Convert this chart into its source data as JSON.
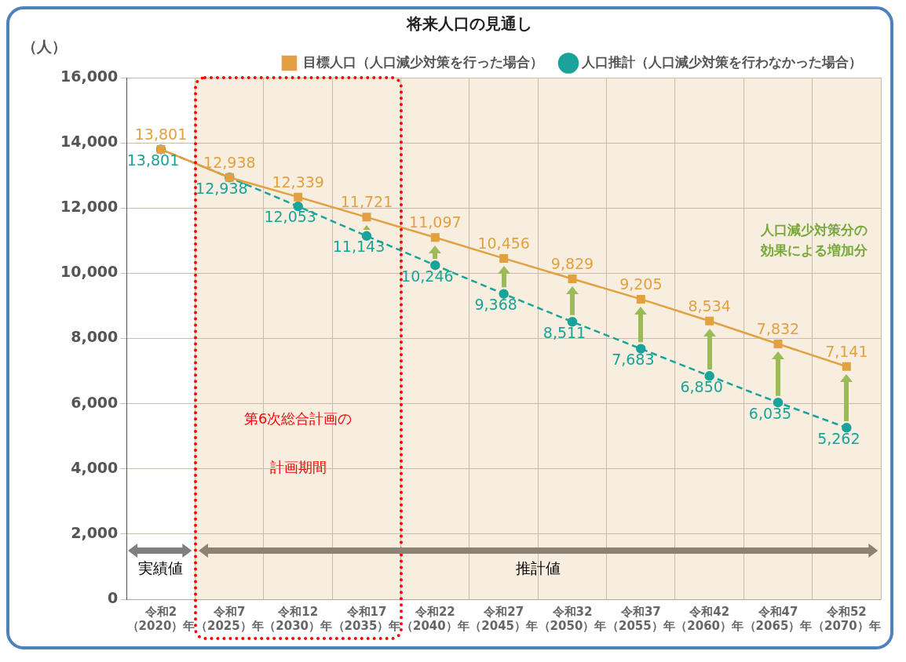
{
  "chart_data": {
    "type": "line",
    "title": "将来人口の見通し",
    "ylabel": "（人）",
    "categories": [
      "令和2（2020）年",
      "令和7（2025）年",
      "令和12（2030）年",
      "令和17（2035）年",
      "令和22（2040）年",
      "令和27（2045）年",
      "令和32（2050）年",
      "令和37（2055）年",
      "令和42（2060）年",
      "令和47（2065）年",
      "令和52（2070）年"
    ],
    "series": [
      {
        "name": "目標人口（人口減少対策を行った場合）",
        "color": "#e3a040",
        "marker": "square",
        "line_style": "solid",
        "values": [
          13801,
          12938,
          12339,
          11721,
          11097,
          10456,
          9829,
          9205,
          8534,
          7832,
          7141
        ],
        "value_labels": [
          "13,801",
          "12,938",
          "12,339",
          "11,721",
          "11,097",
          "10,456",
          "9,829",
          "9,205",
          "8,534",
          "7,832",
          "7,141"
        ]
      },
      {
        "name": "人口推計（人口減少対策を行わなかった場合）",
        "color": "#1aa39a",
        "marker": "circle",
        "line_style": "dashed",
        "values": [
          13801,
          12938,
          12053,
          11143,
          10246,
          9368,
          8511,
          7683,
          6850,
          6035,
          5262
        ],
        "value_labels": [
          "13,801",
          "12,938",
          "12,053",
          "11,143",
          "10,246",
          "9,368",
          "8,511",
          "7,683",
          "6,850",
          "6,035",
          "5,262"
        ]
      }
    ],
    "ylim": [
      0,
      16000
    ],
    "yticks": [
      {
        "value": 0,
        "label": "0"
      },
      {
        "value": 2000,
        "label": "2,000"
      },
      {
        "value": 4000,
        "label": "4,000"
      },
      {
        "value": 6000,
        "label": "6,000"
      },
      {
        "value": 8000,
        "label": "8,000"
      },
      {
        "value": 10000,
        "label": "10,000"
      },
      {
        "value": 12000,
        "label": "12,000"
      },
      {
        "value": 14000,
        "label": "14,000"
      },
      {
        "value": 16000,
        "label": "16,000"
      }
    ],
    "grid": true,
    "legend": "top",
    "bands": [
      {
        "axis": "x",
        "from": "令和7（2025）年",
        "to": "令和52（2070）年",
        "color": "#f8eedf"
      }
    ],
    "annotations": [
      "実績値",
      "推計値",
      "人口減少対策分の効果による増加分",
      "第6次総合計画の",
      "計画期間"
    ]
  }
}
